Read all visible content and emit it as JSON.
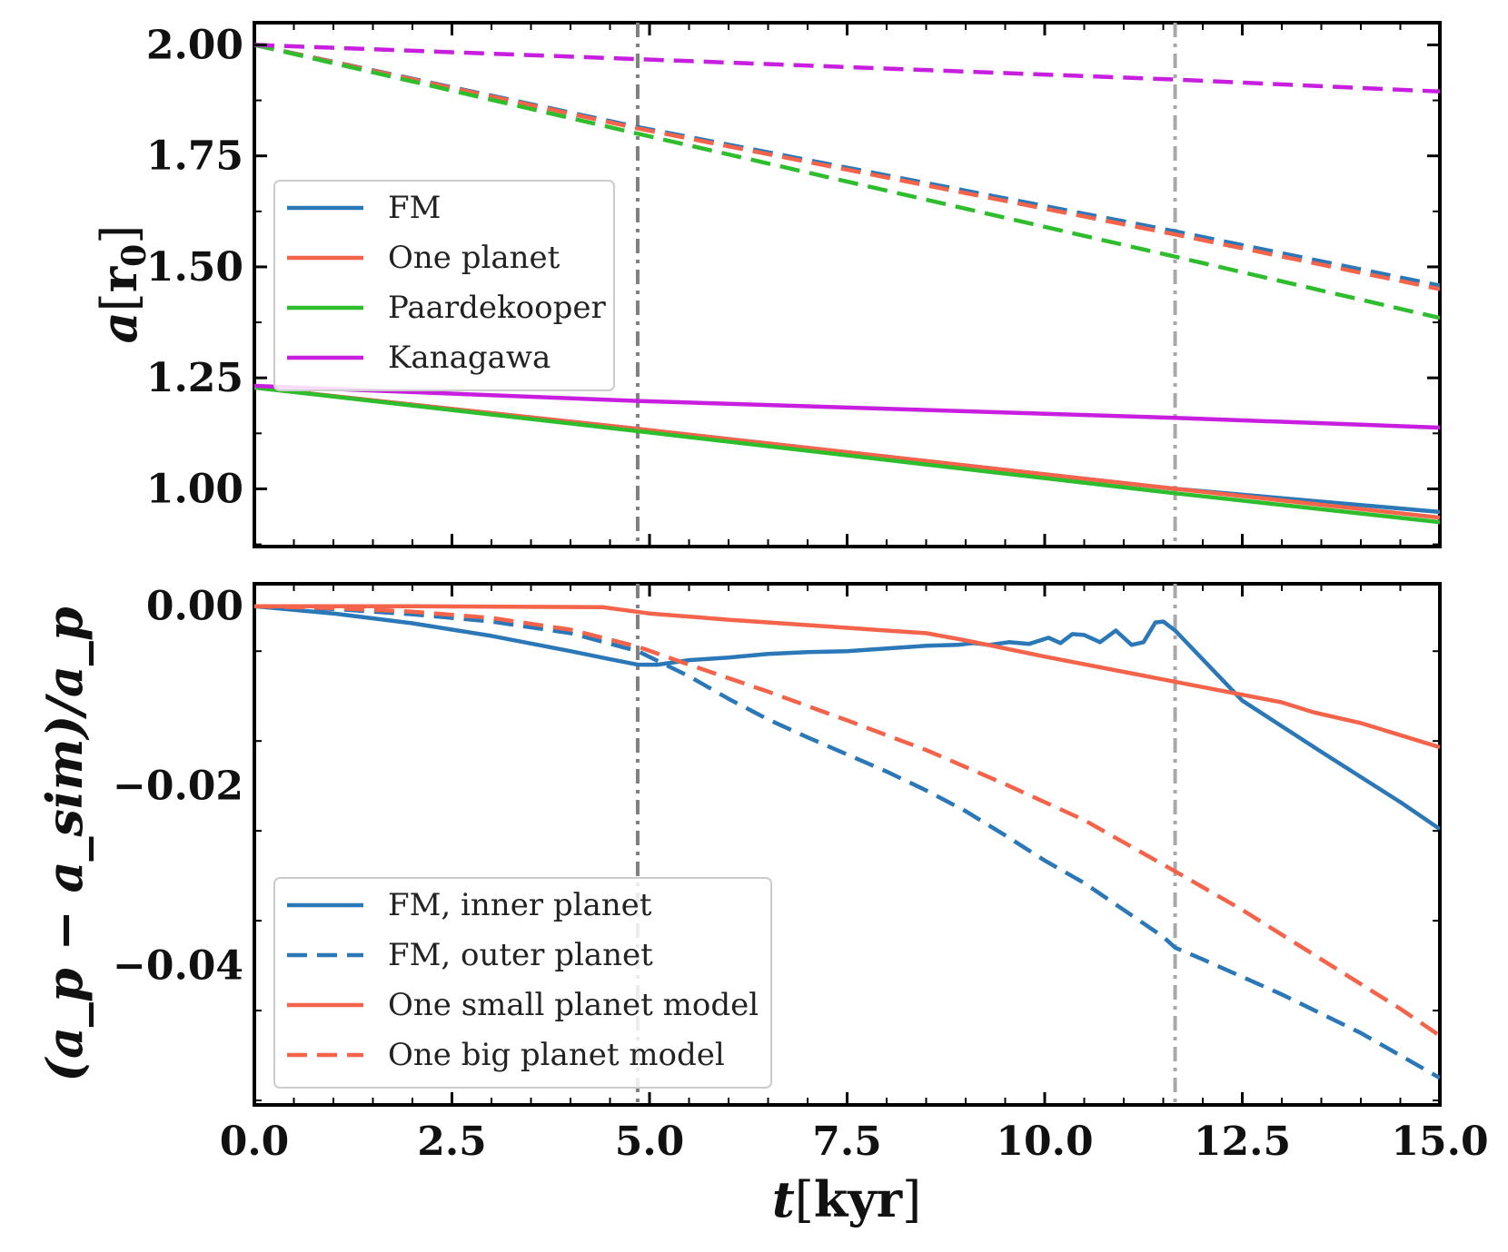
{
  "chart_data": [
    {
      "type": "line",
      "ylabel_main": "a",
      "ylabel_unit": "r",
      "ylabel_sub": "0",
      "xlim": [
        0,
        15
      ],
      "ylim": [
        0.87,
        2.05
      ],
      "yticks": [
        1.0,
        1.25,
        1.5,
        1.75,
        2.0
      ],
      "ytick_labels": [
        "1.00",
        "1.25",
        "1.50",
        "1.75",
        "2.00"
      ],
      "grid": false,
      "legend_position": "upper-left",
      "legend": [
        {
          "label": "FM",
          "color": "#2b78b8",
          "dash": "solid"
        },
        {
          "label": "One planet",
          "color": "#f4634a",
          "dash": "solid"
        },
        {
          "label": "Paardekooper",
          "color": "#2dbd2d",
          "dash": "solid"
        },
        {
          "label": "Kanagawa",
          "color": "#c81ee0",
          "dash": "solid"
        }
      ],
      "series": [
        {
          "name": "FM",
          "color": "#2b78b8",
          "dash": "dashed",
          "x": [
            0,
            4.85,
            11.65,
            15
          ],
          "y": [
            2.0,
            1.815,
            1.58,
            1.458
          ]
        },
        {
          "name": "One planet",
          "color": "#f4634a",
          "dash": "dashed",
          "x": [
            0,
            4.85,
            11.65,
            15
          ],
          "y": [
            2.0,
            1.812,
            1.573,
            1.45
          ]
        },
        {
          "name": "Paardekooper",
          "color": "#2dbd2d",
          "dash": "dashed",
          "x": [
            0,
            4.85,
            11.65,
            15
          ],
          "y": [
            2.0,
            1.8,
            1.523,
            1.385
          ]
        },
        {
          "name": "Kanagawa",
          "color": "#c81ee0",
          "dash": "dashed",
          "x": [
            0,
            4.85,
            11.65,
            15
          ],
          "y": [
            2.0,
            1.968,
            1.922,
            1.895
          ]
        },
        {
          "name": "FM",
          "color": "#2b78b8",
          "dash": "solid",
          "x": [
            0,
            4.85,
            11.65,
            15
          ],
          "y": [
            1.228,
            1.135,
            1.0,
            0.948
          ]
        },
        {
          "name": "One planet",
          "color": "#f4634a",
          "dash": "solid",
          "x": [
            0,
            4.85,
            11.65,
            15
          ],
          "y": [
            1.228,
            1.135,
            1.0,
            0.935
          ]
        },
        {
          "name": "Paardekooper",
          "color": "#2dbd2d",
          "dash": "solid",
          "x": [
            0,
            4.85,
            11.65,
            15
          ],
          "y": [
            1.228,
            1.13,
            0.99,
            0.925
          ]
        },
        {
          "name": "Kanagawa",
          "color": "#c81ee0",
          "dash": "solid",
          "x": [
            0,
            4.85,
            11.65,
            15
          ],
          "y": [
            1.232,
            1.198,
            1.16,
            1.138
          ]
        }
      ],
      "vlines": [
        {
          "x": 4.85,
          "color": "#808080"
        },
        {
          "x": 11.65,
          "color": "#a8a8a8"
        }
      ]
    },
    {
      "type": "line",
      "ylabel": "(a_p − a_sim)/a_p",
      "xlabel_main": "t",
      "xlabel_unit": "kyr",
      "xlim": [
        0,
        15
      ],
      "ylim": [
        -0.0555,
        0.0025
      ],
      "xticks": [
        0,
        2.5,
        5,
        7.5,
        10,
        12.5,
        15
      ],
      "xtick_labels": [
        "0.0",
        "2.5",
        "5.0",
        "7.5",
        "10.0",
        "12.5",
        "15.0"
      ],
      "yticks": [
        0.0,
        -0.02,
        -0.04
      ],
      "ytick_labels": [
        "0.00",
        "−0.02",
        "−0.04"
      ],
      "grid": false,
      "legend_position": "lower-left",
      "legend": [
        {
          "label": "FM, inner planet",
          "color": "#2b78b8",
          "dash": "solid"
        },
        {
          "label": "FM, outer planet",
          "color": "#2b78b8",
          "dash": "dashed"
        },
        {
          "label": "One small planet model",
          "color": "#f4634a",
          "dash": "solid"
        },
        {
          "label": "One big planet model",
          "color": "#f4634a",
          "dash": "dashed"
        }
      ],
      "series": [
        {
          "name": "FM, inner planet",
          "color": "#2b78b8",
          "dash": "solid",
          "x": [
            0,
            1,
            2,
            3,
            4,
            4.5,
            4.85,
            5.1,
            5.5,
            6.0,
            6.5,
            7.0,
            7.5,
            8.0,
            8.5,
            8.9,
            9.1,
            9.3,
            9.55,
            9.8,
            10.05,
            10.2,
            10.35,
            10.5,
            10.7,
            10.9,
            11.1,
            11.25,
            11.4,
            11.5,
            11.65,
            11.9,
            12.5,
            13.5,
            14.5,
            15
          ],
          "y": [
            0,
            -0.0008,
            -0.0019,
            -0.0033,
            -0.005,
            -0.0059,
            -0.0065,
            -0.0065,
            -0.006,
            -0.0057,
            -0.0053,
            -0.0051,
            -0.005,
            -0.0047,
            -0.0044,
            -0.0043,
            -0.0041,
            -0.0043,
            -0.004,
            -0.0042,
            -0.0035,
            -0.0041,
            -0.0031,
            -0.0032,
            -0.004,
            -0.0027,
            -0.0043,
            -0.004,
            -0.0018,
            -0.0017,
            -0.0027,
            -0.005,
            -0.0105,
            -0.0162,
            -0.0218,
            -0.0248
          ]
        },
        {
          "name": "FM, outer planet",
          "color": "#2b78b8",
          "dash": "dashed",
          "x": [
            0,
            1,
            2,
            3,
            4,
            4.85,
            5.5,
            6.0,
            6.5,
            7.0,
            7.5,
            8.0,
            8.5,
            9.0,
            9.5,
            10.0,
            10.5,
            11.0,
            11.5,
            11.65,
            12.0,
            13.0,
            14.0,
            15
          ],
          "y": [
            0,
            -0.0003,
            -0.0009,
            -0.0017,
            -0.003,
            -0.005,
            -0.0078,
            -0.0103,
            -0.0126,
            -0.0146,
            -0.0165,
            -0.0184,
            -0.0205,
            -0.0228,
            -0.0255,
            -0.0283,
            -0.0308,
            -0.0338,
            -0.0368,
            -0.038,
            -0.0393,
            -0.0432,
            -0.0475,
            -0.0525
          ]
        },
        {
          "name": "One small planet model",
          "color": "#f4634a",
          "dash": "solid",
          "x": [
            0,
            2,
            4.4,
            5,
            6,
            7,
            8,
            8.5,
            9,
            10,
            11,
            12,
            13,
            13.4,
            14,
            15
          ],
          "y": [
            0,
            0,
            -0.0001,
            -0.0008,
            -0.0015,
            -0.0021,
            -0.0027,
            -0.003,
            -0.0038,
            -0.0056,
            -0.0073,
            -0.009,
            -0.0107,
            -0.0118,
            -0.013,
            -0.0157
          ]
        },
        {
          "name": "One big planet model",
          "color": "#f4634a",
          "dash": "dashed",
          "x": [
            0,
            1,
            2,
            3,
            4,
            4.85,
            5.5,
            6.5,
            7.5,
            8.5,
            9.5,
            10.5,
            11.65,
            12.5,
            13.5,
            14.5,
            15
          ],
          "y": [
            0,
            -0.0002,
            -0.0006,
            -0.0013,
            -0.0026,
            -0.0045,
            -0.0065,
            -0.0095,
            -0.0127,
            -0.016,
            -0.0198,
            -0.0238,
            -0.0295,
            -0.0338,
            -0.0393,
            -0.0448,
            -0.0478
          ]
        }
      ],
      "vlines": [
        {
          "x": 4.85,
          "color": "#808080"
        },
        {
          "x": 11.65,
          "color": "#a8a8a8"
        }
      ]
    }
  ]
}
